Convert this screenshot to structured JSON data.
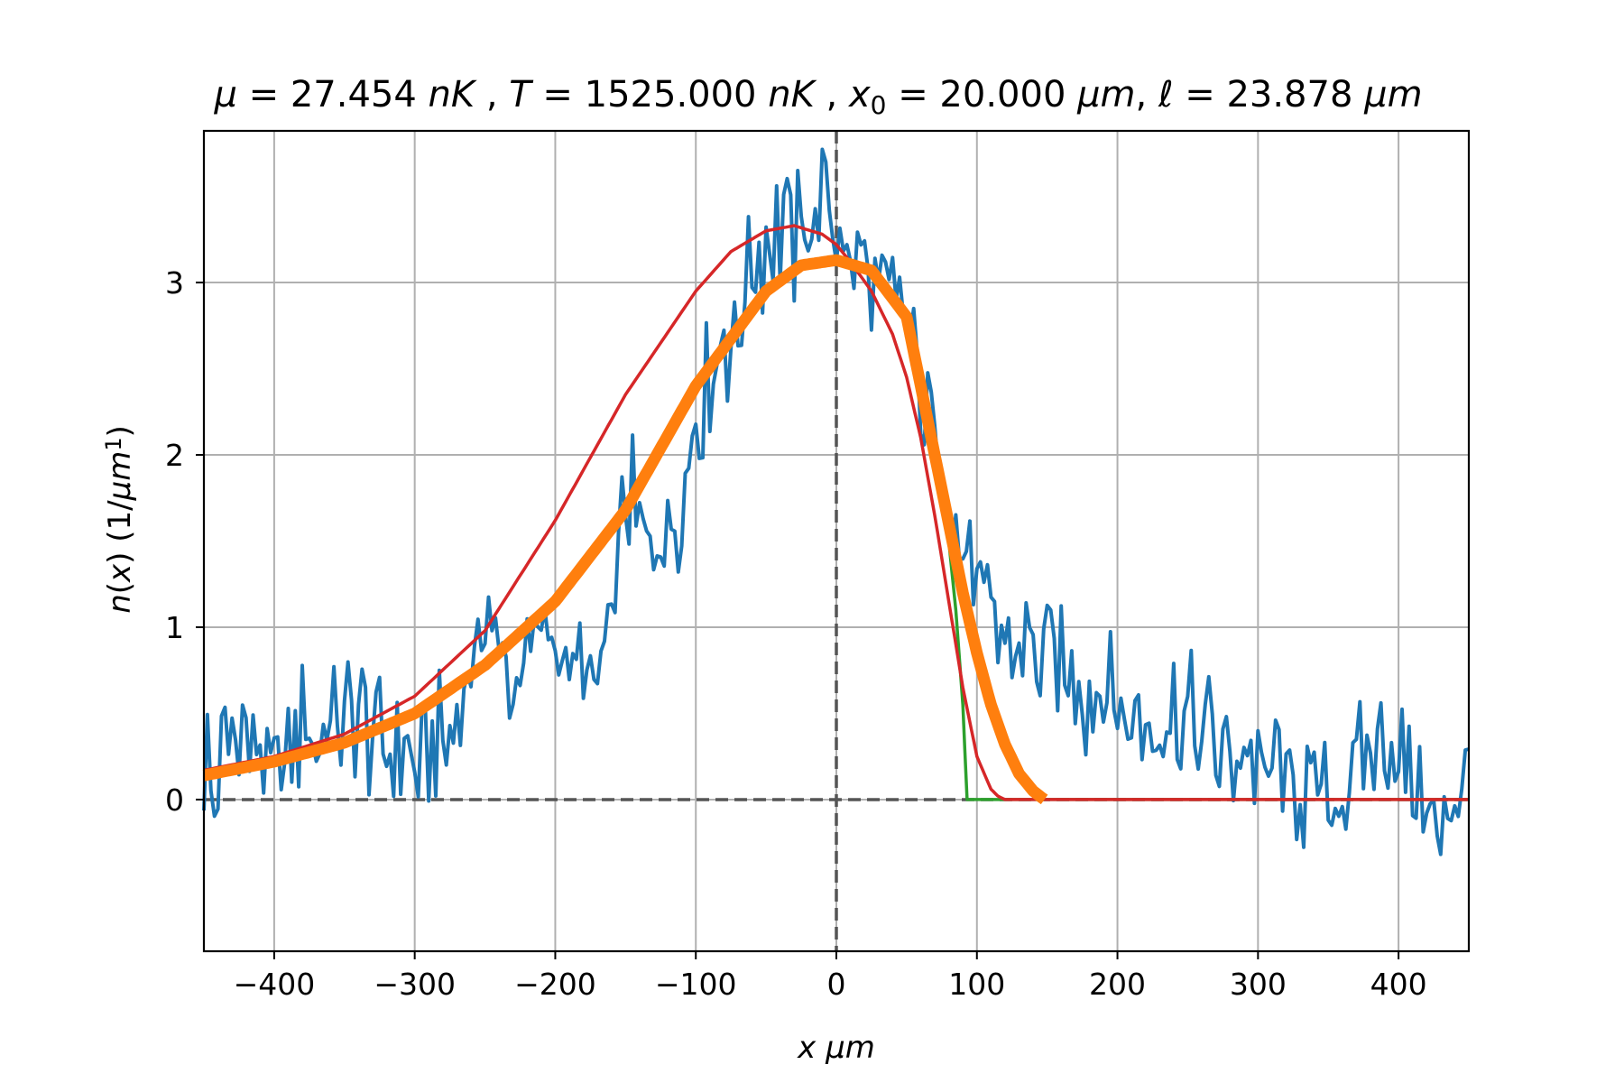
{
  "chart_data": {
    "type": "line",
    "title": {
      "parts": [
        {
          "t": "μ",
          "i": true
        },
        {
          "t": " =  27.454 ",
          "i": false
        },
        {
          "t": "nK",
          "i": true
        },
        {
          "t": " , ",
          "i": false
        },
        {
          "t": "T",
          "i": true
        },
        {
          "t": " =  1525.000 ",
          "i": false
        },
        {
          "t": "nK",
          "i": true
        },
        {
          "t": " , ",
          "i": false
        },
        {
          "t": "x",
          "i": true
        },
        {
          "t": "0",
          "i": false,
          "sub": true
        },
        {
          "t": " =  20.000 ",
          "i": false
        },
        {
          "t": "μm",
          "i": true
        },
        {
          "t": ",  ",
          "i": false
        },
        {
          "t": "ℓ",
          "i": true
        },
        {
          "t": " =  23.878 ",
          "i": false
        },
        {
          "t": "μm",
          "i": true
        }
      ]
    },
    "xlabel": {
      "parts": [
        {
          "t": "x",
          "i": true
        },
        {
          "t": "   ",
          "i": false
        },
        {
          "t": "μm",
          "i": true
        }
      ]
    },
    "ylabel": {
      "parts": [
        {
          "t": "n",
          "i": true
        },
        {
          "t": "(",
          "i": false
        },
        {
          "t": "x",
          "i": true
        },
        {
          "t": ")    (1/",
          "i": false
        },
        {
          "t": "μm",
          "i": true
        },
        {
          "t": "1",
          "i": false,
          "sup": true
        },
        {
          "t": ")",
          "i": false
        }
      ]
    },
    "xlim": [
      -450,
      450
    ],
    "ylim": [
      -0.88,
      3.88
    ],
    "xticks": [
      -400,
      -300,
      -200,
      -100,
      0,
      100,
      200,
      300,
      400
    ],
    "xtick_labels": [
      "−400",
      "−300",
      "−200",
      "−100",
      "0",
      "100",
      "200",
      "300",
      "400"
    ],
    "yticks": [
      0,
      1,
      2,
      3
    ],
    "ytick_labels": [
      "0",
      "1",
      "2",
      "3"
    ],
    "grid": true,
    "reference_lines": [
      {
        "orientation": "horizontal",
        "value": 0,
        "style": "dashed",
        "color": "#555555"
      },
      {
        "orientation": "vertical",
        "value": 0,
        "style": "dashed",
        "color": "#555555"
      }
    ],
    "series": [
      {
        "color": "#1f77b4",
        "width": 4,
        "kind": "noisy",
        "x": [
          -450,
          -440,
          -430,
          -420,
          -410,
          -400,
          -390,
          -380,
          -370,
          -360,
          -350,
          -340,
          -330,
          -320,
          -310,
          -300,
          -290,
          -280,
          -270,
          -260,
          -250,
          -240,
          -230,
          -220,
          -210,
          -200,
          -190,
          -180,
          -170,
          -160,
          -150,
          -140,
          -130,
          -120,
          -110,
          -100,
          -90,
          -80,
          -70,
          -60,
          -50,
          -40,
          -30,
          -20,
          -10,
          0,
          10,
          20,
          30,
          40,
          50,
          60,
          70,
          80,
          90,
          100,
          110,
          120,
          130,
          140,
          150,
          160,
          170,
          180,
          190,
          200,
          210,
          220,
          230,
          240,
          250,
          260,
          270,
          280,
          290,
          300,
          310,
          320,
          330,
          340,
          350,
          360,
          370,
          380,
          390,
          400,
          410,
          420,
          430,
          440,
          450
        ],
        "y": [
          0.25,
          0.05,
          0.55,
          0.3,
          0.2,
          0.1,
          0.35,
          0.4,
          0.45,
          0.48,
          0.5,
          0.45,
          0.4,
          0.35,
          0.3,
          0.2,
          0.35,
          0.3,
          0.4,
          0.8,
          1.05,
          0.8,
          0.75,
          0.85,
          0.95,
          0.9,
          0.8,
          0.7,
          0.6,
          1.0,
          1.75,
          1.65,
          1.5,
          1.45,
          1.8,
          2.15,
          2.4,
          2.65,
          2.8,
          3.05,
          3.25,
          3.35,
          3.25,
          3.4,
          3.45,
          3.35,
          3.1,
          3.15,
          3.05,
          2.95,
          2.7,
          2.4,
          2.1,
          1.75,
          1.45,
          1.15,
          1.05,
          1.0,
          0.9,
          0.85,
          0.8,
          0.75,
          0.7,
          0.65,
          0.6,
          0.55,
          0.5,
          0.45,
          0.5,
          0.55,
          0.5,
          0.45,
          0.35,
          0.3,
          0.25,
          0.2,
          0.15,
          0.12,
          0.1,
          0.05,
          0.0,
          -0.05,
          0.1,
          0.3,
          0.35,
          0.2,
          0.1,
          0.0,
          -0.2,
          -0.1,
          0.35
        ]
      },
      {
        "color": "#2ca02c",
        "width": 3.5,
        "kind": "thomas_fermi",
        "params": {
          "peak": 3.13,
          "center": -5,
          "cutoff": 93
        },
        "x": [
          -450,
          -400,
          -350,
          -300,
          -250,
          -200,
          -150,
          -100,
          -50,
          -25,
          0,
          25,
          50,
          60,
          70,
          80,
          85,
          90,
          93,
          150,
          200,
          300,
          450
        ],
        "y": [
          0.14,
          0.22,
          0.33,
          0.5,
          0.78,
          1.15,
          1.68,
          2.4,
          2.95,
          3.1,
          3.13,
          3.07,
          2.8,
          2.5,
          2.1,
          1.5,
          1.1,
          0.55,
          0.0,
          0.0,
          0.0,
          0.0,
          0.0
        ]
      },
      {
        "color": "#d62728",
        "width": 3.5,
        "kind": "gaussian",
        "x": [
          -450,
          -400,
          -350,
          -300,
          -250,
          -200,
          -150,
          -100,
          -75,
          -50,
          -30,
          -10,
          0,
          10,
          25,
          40,
          50,
          60,
          70,
          80,
          90,
          100,
          110,
          115,
          120,
          200,
          300,
          450
        ],
        "y": [
          0.17,
          0.25,
          0.38,
          0.6,
          0.98,
          1.62,
          2.35,
          2.95,
          3.18,
          3.3,
          3.33,
          3.28,
          3.22,
          3.12,
          2.95,
          2.7,
          2.45,
          2.1,
          1.65,
          1.15,
          0.65,
          0.25,
          0.06,
          0.02,
          0.0,
          0.0,
          0.0,
          0.0
        ]
      },
      {
        "color": "#ff7f0e",
        "width": 13,
        "kind": "fit",
        "x": [
          -450,
          -400,
          -350,
          -300,
          -250,
          -200,
          -150,
          -100,
          -50,
          -25,
          0,
          25,
          50,
          60,
          70,
          80,
          90,
          100,
          110,
          120,
          130,
          140,
          148
        ],
        "y": [
          0.14,
          0.22,
          0.33,
          0.5,
          0.78,
          1.15,
          1.68,
          2.4,
          2.95,
          3.1,
          3.13,
          3.07,
          2.8,
          2.4,
          2.0,
          1.6,
          1.2,
          0.85,
          0.55,
          0.32,
          0.15,
          0.05,
          0.0
        ]
      }
    ]
  }
}
